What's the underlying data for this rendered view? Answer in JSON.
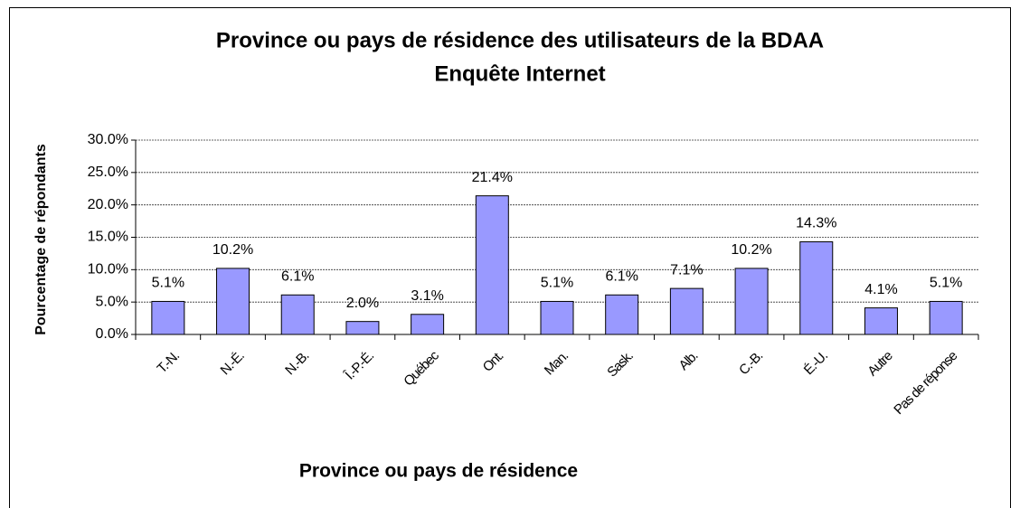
{
  "chart_data": {
    "type": "bar",
    "title": "Province ou pays de résidence des utilisateurs de la BDAA",
    "subtitle": "Enquête Internet",
    "y_label": "Pourcentage de répondants",
    "x_label": "Province ou pays de résidence",
    "categories": [
      "T.-N.",
      "N.-É.",
      "N.-B.",
      "Î.-P.-É.",
      "Québec",
      "Ont.",
      "Man.",
      "Sask.",
      "Alb.",
      "C.-B.",
      "É.-U.",
      "Autre",
      "Pas de réponse"
    ],
    "values": [
      5.1,
      10.2,
      6.1,
      2.0,
      3.1,
      21.4,
      5.1,
      6.1,
      7.1,
      10.2,
      14.3,
      4.1,
      5.1
    ],
    "value_labels": [
      "5.1%",
      "10.2%",
      "6.1%",
      "2.0%",
      "3.1%",
      "21.4%",
      "5.1%",
      "6.1%",
      "7.1%",
      "10.2%",
      "14.3%",
      "4.1%",
      "5.1%"
    ],
    "color": "#9999ff",
    "ylim": [
      0,
      30
    ],
    "yticks": [
      {
        "value": 0,
        "label": "0.0%"
      },
      {
        "value": 5,
        "label": "5.0%"
      },
      {
        "value": 10,
        "label": "10.0%"
      },
      {
        "value": 15,
        "label": "15.0%"
      },
      {
        "value": 20,
        "label": "20.0%"
      },
      {
        "value": 25,
        "label": "25.0%"
      },
      {
        "value": 30,
        "label": "30.0%"
      }
    ],
    "grid": true
  }
}
